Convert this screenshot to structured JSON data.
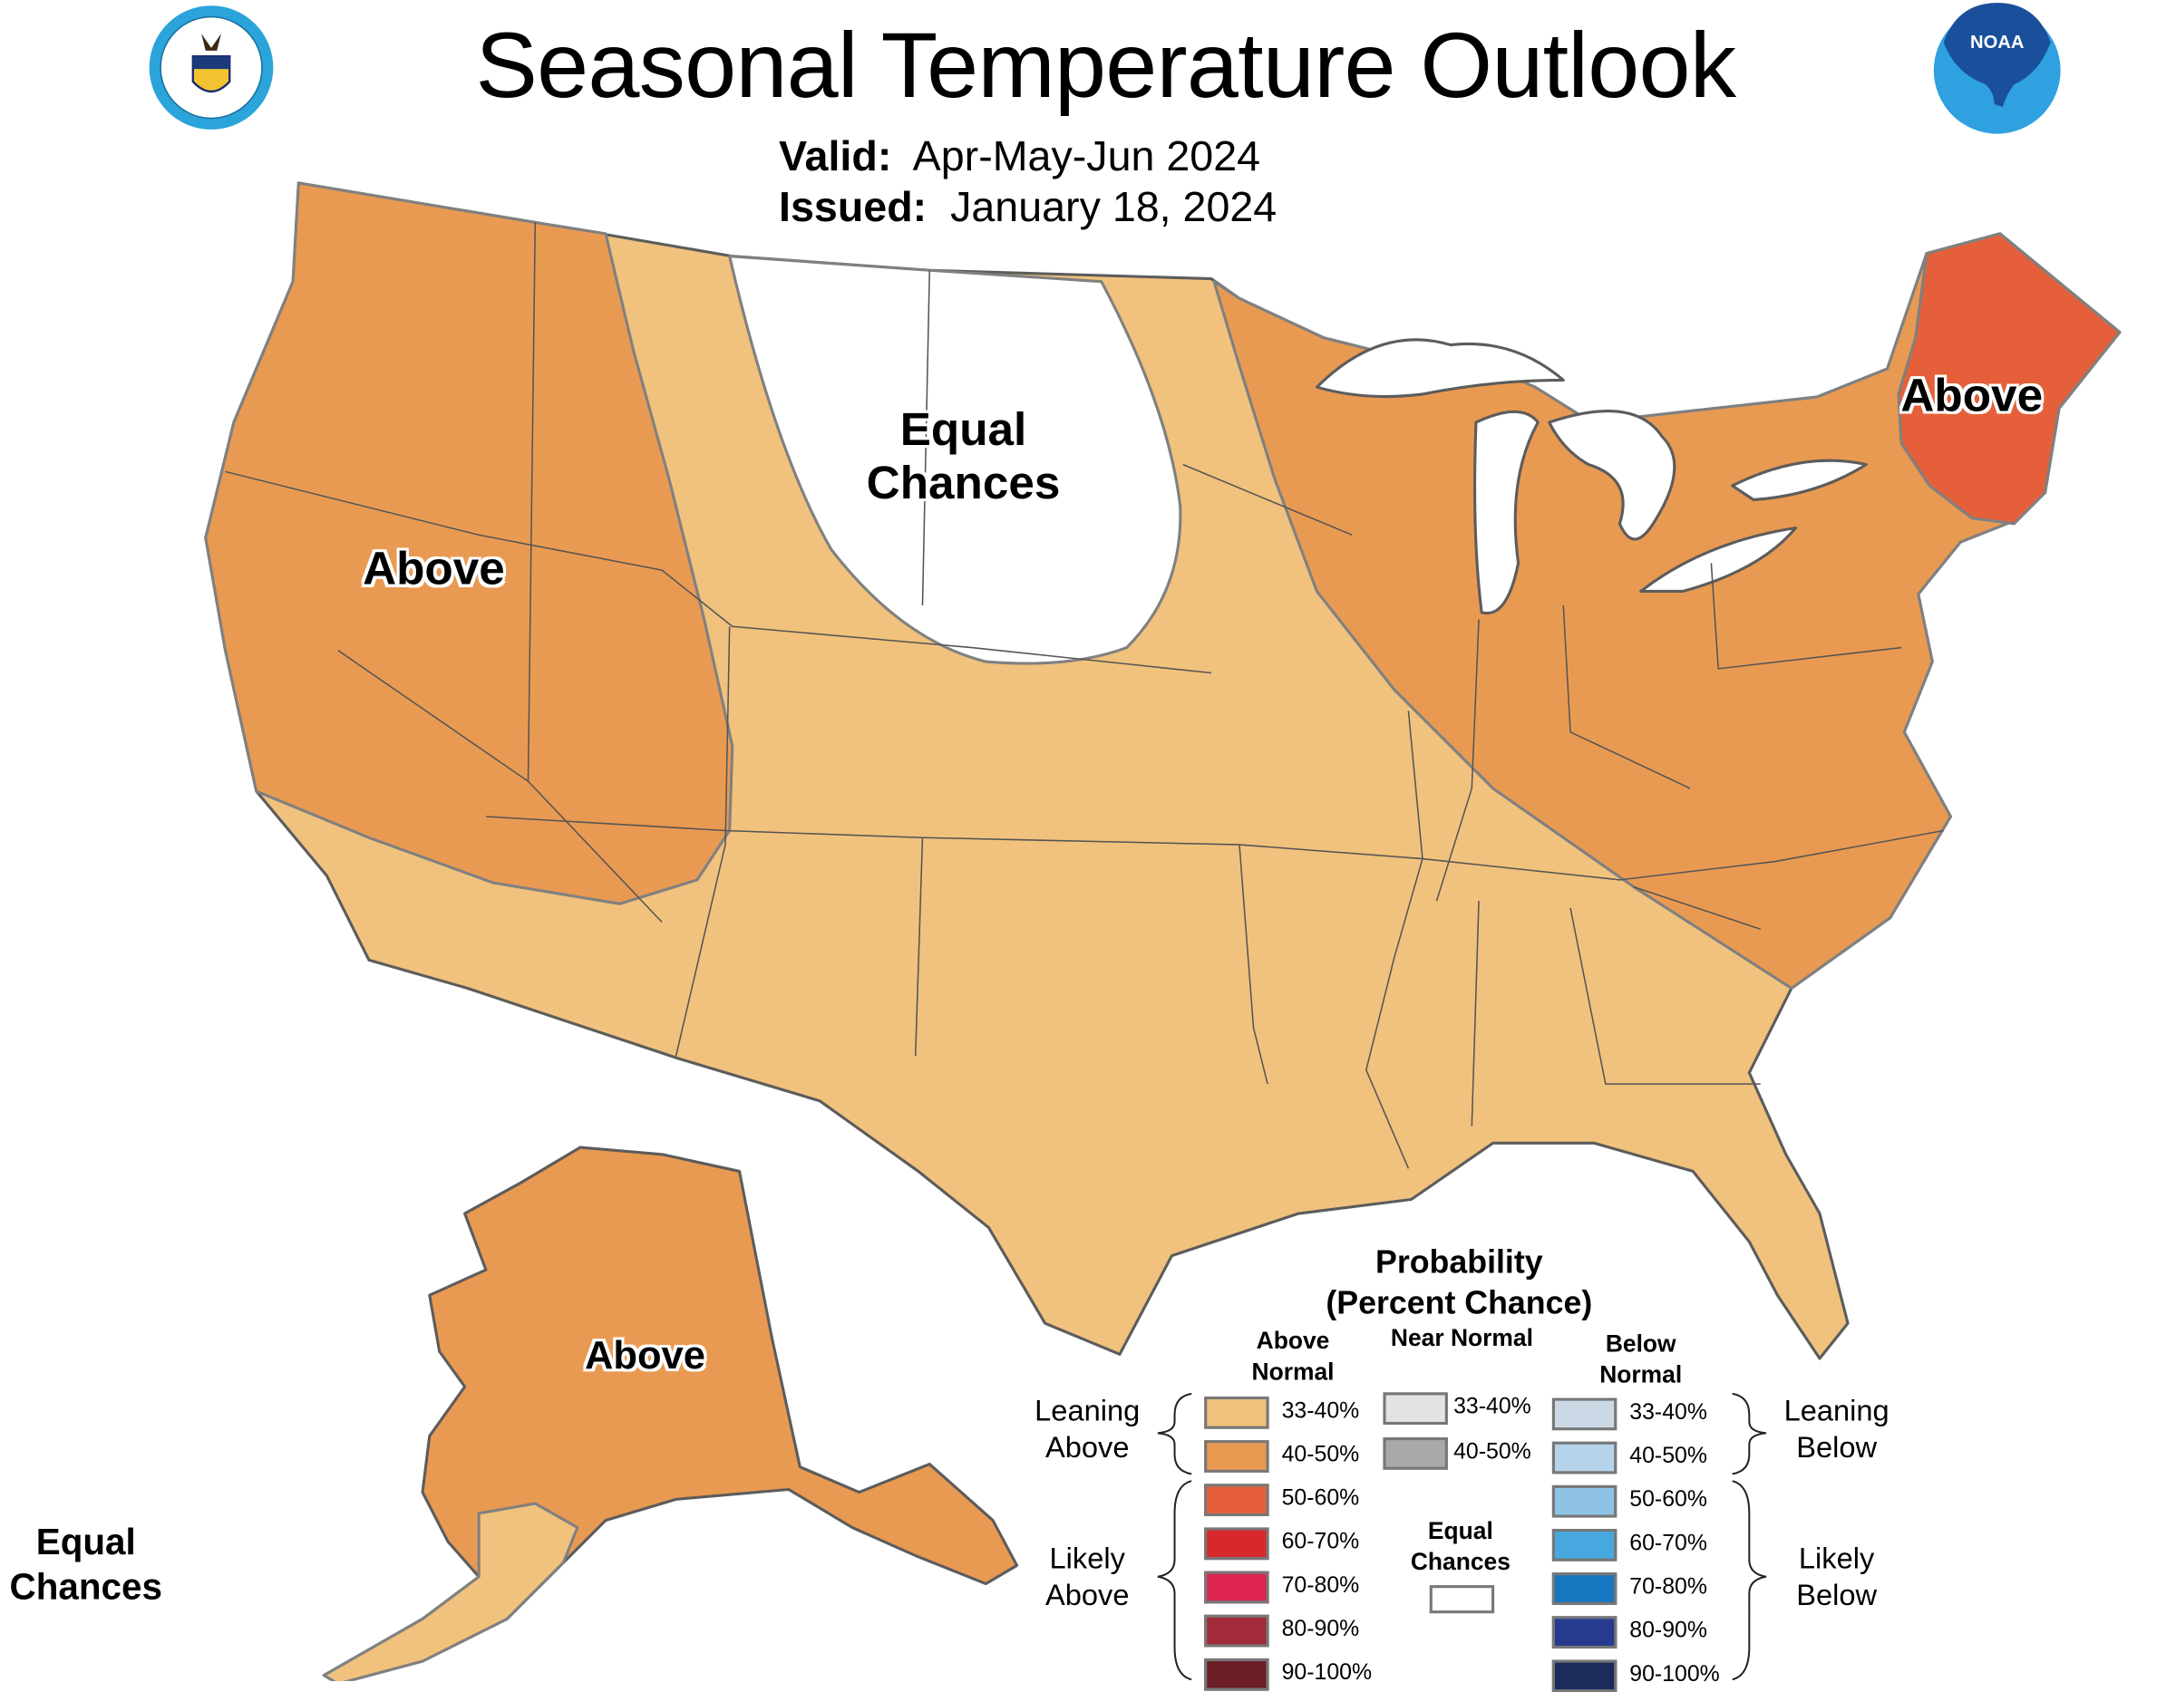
{
  "header": {
    "title": "Seasonal Temperature Outlook",
    "valid_label": "Valid:",
    "valid_value": "Apr-May-Jun 2024",
    "issued_label": "Issued:",
    "issued_value": "January 18, 2024",
    "left_logo": "department-of-commerce-seal",
    "right_logo": "noaa-logo",
    "right_logo_text": "NOAA"
  },
  "map": {
    "labels": {
      "west": "Above",
      "plains": "Equal Chances",
      "new_england": "Above",
      "alaska": "Above",
      "hawaii_area": "Equal Chances"
    },
    "fill_colors": {
      "leaning_above_33_40": "#f1c27d",
      "leaning_above_40_50": "#e99a52",
      "likely_above_50_60": "#e5603a",
      "equal_chances": "#ffffff",
      "lakes": "#ffffff",
      "border": "#5c5c5c"
    }
  },
  "legend": {
    "title_line1": "Probability",
    "title_line2": "(Percent Chance)",
    "columns": {
      "above": "Above Normal",
      "near": "Near Normal",
      "below": "Below Normal"
    },
    "groups": {
      "leaning_above": "Leaning Above",
      "likely_above": "Likely Above",
      "leaning_below": "Leaning Below",
      "likely_below": "Likely Below",
      "equal_chances": "Equal Chances"
    },
    "above": [
      {
        "label": "33-40%",
        "color": "#f1c27d"
      },
      {
        "label": "40-50%",
        "color": "#e99a52"
      },
      {
        "label": "50-60%",
        "color": "#e5603a"
      },
      {
        "label": "60-70%",
        "color": "#d9282c"
      },
      {
        "label": "70-80%",
        "color": "#dd2450"
      },
      {
        "label": "80-90%",
        "color": "#a32a38"
      },
      {
        "label": "90-100%",
        "color": "#6b1e26"
      }
    ],
    "near": [
      {
        "label": "33-40%",
        "color": "#e3e3e3"
      },
      {
        "label": "40-50%",
        "color": "#a9a9a9"
      }
    ],
    "below": [
      {
        "label": "33-40%",
        "color": "#cbd9e6"
      },
      {
        "label": "40-50%",
        "color": "#b5d3ea"
      },
      {
        "label": "50-60%",
        "color": "#8ec3e6"
      },
      {
        "label": "60-70%",
        "color": "#47a8df"
      },
      {
        "label": "70-80%",
        "color": "#1677c0"
      },
      {
        "label": "80-90%",
        "color": "#263a90"
      },
      {
        "label": "90-100%",
        "color": "#1d2a5c"
      }
    ],
    "equal_chances_color": "#ffffff"
  }
}
